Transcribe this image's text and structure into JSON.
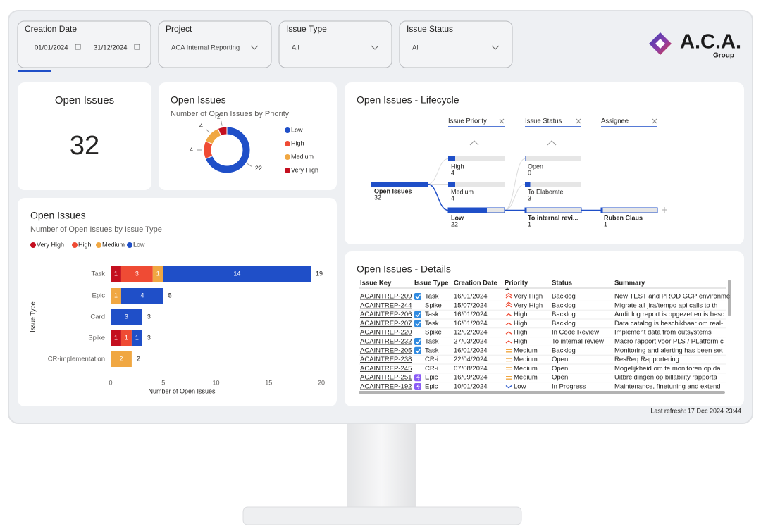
{
  "filters": [
    {
      "label": "Creation Date",
      "values": [
        "01/01/2024",
        "31/12/2024"
      ]
    },
    {
      "label": "Project",
      "value": "ACA Internal Reporting"
    },
    {
      "label": "Issue Type",
      "value": "All"
    },
    {
      "label": "Issue Status",
      "value": "All"
    }
  ],
  "logo": {
    "name": "A.C.A.",
    "sub": "Group"
  },
  "kpi": {
    "title": "Open Issues",
    "value": 32
  },
  "chart_data": [
    {
      "type": "pie",
      "title": "Open Issues",
      "subtitle": "Number of Open Issues by Priority",
      "categories": [
        "Low",
        "High",
        "Medium",
        "Very High"
      ],
      "values": [
        22,
        4,
        4,
        2
      ],
      "colors": [
        "#1f4fc8",
        "#ef4b34",
        "#f0a742",
        "#c40f1f"
      ],
      "donut": true
    },
    {
      "type": "bar",
      "orientation": "horizontal",
      "title": "Open Issues",
      "subtitle": "Number of Open Issues by Issue Type",
      "x_label": "Number of Open Issues",
      "y_label": "Issue Type",
      "categories": [
        "Task",
        "Epic",
        "Card",
        "Spike",
        "CR-implementation"
      ],
      "series": [
        {
          "name": "Very High",
          "color": "#c40f1f",
          "values": [
            1,
            null,
            null,
            1,
            null
          ]
        },
        {
          "name": "High",
          "color": "#ef4b34",
          "values": [
            3,
            null,
            null,
            1,
            null
          ]
        },
        {
          "name": "Medium",
          "color": "#f0a742",
          "values": [
            1,
            1,
            null,
            null,
            2
          ]
        },
        {
          "name": "Low",
          "color": "#1f4fc8",
          "values": [
            14,
            4,
            3,
            1,
            null
          ]
        }
      ],
      "totals": [
        19,
        5,
        3,
        3,
        2
      ],
      "xlim": [
        0,
        20
      ],
      "xticks": [
        0,
        5,
        10,
        15,
        20
      ],
      "legend": "top-left"
    }
  ],
  "lifecycle": {
    "title": "Open Issues - Lifecycle",
    "levels": [
      "Issue Priority",
      "Issue Status",
      "Assignee"
    ],
    "root": {
      "label": "Open Issues",
      "value": 32
    },
    "columns": [
      [
        {
          "label": "High",
          "value": 4
        },
        {
          "label": "Medium",
          "value": 4
        },
        {
          "label": "Low",
          "value": 22
        }
      ],
      [
        {
          "label": "Open",
          "value": 0
        },
        {
          "label": "To Elaborate",
          "value": 3
        },
        {
          "label": "To internal revi...",
          "value": 1
        }
      ],
      [
        {
          "label": "Ruben Claus",
          "value": 1
        }
      ]
    ]
  },
  "details": {
    "title": "Open Issues - Details",
    "columns": [
      "Issue Key",
      "Issue Type",
      "Creation Date",
      "Priority",
      "Status",
      "Summary"
    ],
    "rows": [
      [
        "ACAINTREP-209",
        "Task",
        "16/01/2024",
        "Very High",
        "Backlog",
        "New TEST and PROD GCP environme"
      ],
      [
        "ACAINTREP-244",
        "Spike",
        "15/07/2024",
        "Very High",
        "Backlog",
        "Migrate all jira/tempo api calls to th"
      ],
      [
        "ACAINTREP-206",
        "Task",
        "16/01/2024",
        "High",
        "Backlog",
        "Audit log report is opgezet en is besc"
      ],
      [
        "ACAINTREP-207",
        "Task",
        "16/01/2024",
        "High",
        "Backlog",
        "Data catalog is beschikbaar om real-"
      ],
      [
        "ACAINTREP-220",
        "Spike",
        "12/02/2024",
        "High",
        "In Code Review",
        "Implement data from outsystems"
      ],
      [
        "ACAINTREP-232",
        "Task",
        "27/03/2024",
        "High",
        "To internal review",
        "Macro rapport voor PLS / PLatform c"
      ],
      [
        "ACAINTREP-205",
        "Task",
        "16/01/2024",
        "Medium",
        "Backlog",
        "Monitoring and alerting has been set"
      ],
      [
        "ACAINTREP-238",
        "CR-i...",
        "22/04/2024",
        "Medium",
        "Open",
        "ResReq Rapportering"
      ],
      [
        "ACAINTREP-245",
        "CR-i...",
        "07/08/2024",
        "Medium",
        "Open",
        "Mogelijkheid om te monitoren op da"
      ],
      [
        "ACAINTREP-251",
        "Epic",
        "16/09/2024",
        "Medium",
        "Open",
        "Uitbreidingen op billability rapporta"
      ],
      [
        "ACAINTREP-192",
        "Epic",
        "10/01/2024",
        "Low",
        "In Progress",
        "Maintenance, finetuning and extend"
      ]
    ]
  },
  "footer": "Last refresh: 17 Dec 2024 23:44"
}
